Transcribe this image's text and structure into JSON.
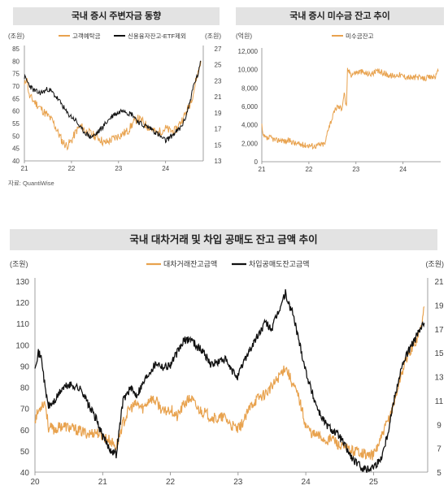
{
  "chart_data": [
    {
      "type": "line",
      "title": "국내 증시 주변자금 동향",
      "y_left_unit": "(조원)",
      "y_right_unit": "(조원)",
      "ylim_left": [
        40,
        85
      ],
      "ylim_right": [
        13,
        27
      ],
      "y_left_ticks": [
        40,
        45,
        50,
        55,
        60,
        65,
        70,
        75,
        80,
        85
      ],
      "y_right_ticks": [
        13,
        15,
        17,
        19,
        21,
        23,
        25,
        27
      ],
      "x_ticks": [
        "21",
        "22",
        "23",
        "24"
      ],
      "x_range": [
        21,
        24.8
      ],
      "legend_position": "top",
      "colors": {
        "left": "#e8a24e",
        "right": "#111111"
      },
      "series": [
        {
          "name": "고객예탁금",
          "axis": "left",
          "x": [
            21.0,
            21.05,
            21.1,
            21.2,
            21.3,
            21.4,
            21.5,
            21.6,
            21.7,
            21.8,
            21.9,
            22.0,
            22.1,
            22.2,
            22.3,
            22.4,
            22.5,
            22.6,
            22.7,
            22.8,
            22.9,
            23.0,
            23.1,
            23.2,
            23.3,
            23.4,
            23.5,
            23.6,
            23.7,
            23.8,
            23.9,
            24.0,
            24.1,
            24.2,
            24.3,
            24.4,
            24.5,
            24.6,
            24.65,
            24.7,
            24.75
          ],
          "values": [
            70,
            74,
            66,
            64,
            62,
            60,
            58,
            56,
            52,
            48,
            46,
            48,
            52,
            54,
            52,
            51,
            50,
            49,
            47,
            48,
            49,
            50,
            51,
            52,
            55,
            57,
            56,
            54,
            53,
            51,
            52,
            53,
            52,
            52,
            55,
            58,
            62,
            68,
            73,
            76,
            80
          ]
        },
        {
          "name": "신용융자잔고-ETF제외",
          "axis": "right",
          "x": [
            21.0,
            21.1,
            21.2,
            21.3,
            21.4,
            21.5,
            21.6,
            21.7,
            21.8,
            21.9,
            22.0,
            22.1,
            22.2,
            22.3,
            22.4,
            22.5,
            22.6,
            22.7,
            22.8,
            22.9,
            23.0,
            23.1,
            23.2,
            23.3,
            23.4,
            23.5,
            23.6,
            23.7,
            23.8,
            23.9,
            24.0,
            24.1,
            24.2,
            24.3,
            24.4,
            24.5,
            24.6,
            24.7,
            24.75
          ],
          "values": [
            23.5,
            22.5,
            21.8,
            21.5,
            21.6,
            22.0,
            21.5,
            20.8,
            20.0,
            19.0,
            18.5,
            18.0,
            17.0,
            16.5,
            16.0,
            16.2,
            16.8,
            17.5,
            18.2,
            18.8,
            19.0,
            19.5,
            19.0,
            18.8,
            18.0,
            17.5,
            17.3,
            17.0,
            16.5,
            16.0,
            15.5,
            16.0,
            16.5,
            17.0,
            18.0,
            20.0,
            22.5,
            24.0,
            25.5
          ]
        }
      ],
      "source": "자료: QuantiWise"
    },
    {
      "type": "line",
      "title": "국내 증시 미수금 잔고 추이",
      "y_unit": "(억원)",
      "ylim": [
        0,
        12000
      ],
      "y_ticks": [
        "0",
        "2,000",
        "4,000",
        "6,000",
        "8,000",
        "10,000",
        "12,000"
      ],
      "x_ticks": [
        "21",
        "22",
        "23",
        "24"
      ],
      "x_range": [
        21,
        24.8
      ],
      "legend_position": "top",
      "colors": {
        "series": "#e8a24e"
      },
      "series": [
        {
          "name": "미수금잔고",
          "x": [
            21.0,
            21.02,
            21.1,
            21.2,
            21.3,
            21.4,
            21.5,
            21.6,
            21.7,
            21.8,
            21.9,
            22.0,
            22.1,
            22.2,
            22.3,
            22.35,
            22.4,
            22.5,
            22.55,
            22.6,
            22.7,
            22.75,
            22.8,
            22.82,
            22.9,
            23.0,
            23.1,
            23.2,
            23.3,
            23.4,
            23.5,
            23.6,
            23.7,
            23.8,
            23.9,
            24.0,
            24.1,
            24.2,
            24.3,
            24.4,
            24.5,
            24.6,
            24.7,
            24.75
          ],
          "values": [
            4000,
            2800,
            2500,
            2600,
            2300,
            2400,
            2200,
            2300,
            2000,
            1900,
            1800,
            1800,
            1700,
            1800,
            1900,
            2000,
            3500,
            4800,
            5500,
            6000,
            5800,
            7500,
            5800,
            10000,
            9500,
            9700,
            9800,
            9600,
            9500,
            9700,
            9800,
            9600,
            9400,
            9300,
            9500,
            9300,
            9200,
            9100,
            9200,
            9000,
            9100,
            9200,
            9300,
            9800
          ]
        }
      ]
    },
    {
      "type": "line",
      "title": "국내 대차거래 및 차입 공매도 잔고 금액 추이",
      "y_left_unit": "(조원)",
      "y_right_unit": "(조원)",
      "ylim_left": [
        40,
        130
      ],
      "ylim_right": [
        5,
        21
      ],
      "y_left_ticks": [
        40,
        50,
        60,
        70,
        80,
        90,
        100,
        110,
        120,
        130
      ],
      "y_right_ticks": [
        5,
        7,
        9,
        11,
        13,
        15,
        17,
        19,
        21
      ],
      "x_ticks": [
        "20",
        "21",
        "22",
        "23",
        "24",
        "25"
      ],
      "x_range": [
        20,
        25.8
      ],
      "legend_position": "top",
      "colors": {
        "left": "#e8a24e",
        "right": "#111111"
      },
      "series": [
        {
          "name": "대차거래잔고금액",
          "axis": "left",
          "x": [
            20.0,
            20.1,
            20.15,
            20.2,
            20.3,
            20.4,
            20.5,
            20.6,
            20.7,
            20.8,
            20.9,
            21.0,
            21.1,
            21.2,
            21.3,
            21.4,
            21.5,
            21.6,
            21.7,
            21.8,
            21.9,
            22.0,
            22.1,
            22.2,
            22.3,
            22.4,
            22.5,
            22.6,
            22.7,
            22.8,
            22.9,
            23.0,
            23.1,
            23.2,
            23.3,
            23.4,
            23.5,
            23.6,
            23.7,
            23.8,
            23.9,
            24.0,
            24.1,
            24.2,
            24.3,
            24.4,
            24.5,
            24.6,
            24.7,
            24.8,
            24.9,
            25.0,
            25.1,
            25.2,
            25.3,
            25.4,
            25.5,
            25.6,
            25.7,
            25.75
          ],
          "values": [
            65,
            72,
            73,
            61,
            60,
            62,
            61,
            60,
            59,
            58,
            59,
            57,
            55,
            52,
            63,
            70,
            72,
            70,
            75,
            73,
            68,
            70,
            66,
            72,
            75,
            70,
            68,
            66,
            65,
            66,
            62,
            60,
            65,
            72,
            75,
            77,
            80,
            85,
            90,
            82,
            75,
            62,
            58,
            57,
            55,
            56,
            52,
            51,
            50,
            50,
            48,
            48,
            55,
            63,
            72,
            85,
            95,
            100,
            108,
            118
          ]
        },
        {
          "name": "차입공매도잔고금액",
          "axis": "right",
          "x": [
            20.0,
            20.05,
            20.1,
            20.15,
            20.2,
            20.3,
            20.4,
            20.5,
            20.6,
            20.7,
            20.8,
            20.9,
            21.0,
            21.1,
            21.2,
            21.3,
            21.4,
            21.5,
            21.6,
            21.7,
            21.8,
            21.9,
            22.0,
            22.1,
            22.2,
            22.3,
            22.4,
            22.5,
            22.6,
            22.7,
            22.8,
            22.9,
            23.0,
            23.1,
            23.2,
            23.3,
            23.4,
            23.5,
            23.6,
            23.7,
            23.75,
            23.8,
            23.9,
            24.0,
            24.1,
            24.2,
            24.3,
            24.4,
            24.5,
            24.6,
            24.7,
            24.8,
            24.9,
            25.0,
            25.1,
            25.2,
            25.3,
            25.4,
            25.5,
            25.6,
            25.7,
            25.75
          ],
          "values": [
            14,
            15.0,
            14.5,
            12.0,
            10.5,
            11.0,
            12.0,
            12.3,
            12.2,
            11.8,
            10.5,
            9.5,
            8.0,
            7.0,
            6.5,
            11.0,
            12.0,
            11.5,
            12.5,
            13.5,
            14.2,
            13.8,
            14.0,
            15.0,
            16.0,
            16.2,
            15.5,
            15.0,
            14.0,
            14.2,
            14.5,
            13.5,
            13.0,
            14.5,
            15.5,
            16.5,
            17.5,
            17.0,
            18.5,
            20.0,
            19.0,
            18.5,
            16.0,
            13.5,
            11.5,
            10.0,
            9.0,
            8.5,
            8.0,
            7.0,
            6.0,
            5.5,
            5.2,
            5.5,
            6.0,
            8.0,
            11.0,
            13.5,
            15.0,
            16.0,
            17.0,
            17.5
          ]
        }
      ]
    }
  ]
}
